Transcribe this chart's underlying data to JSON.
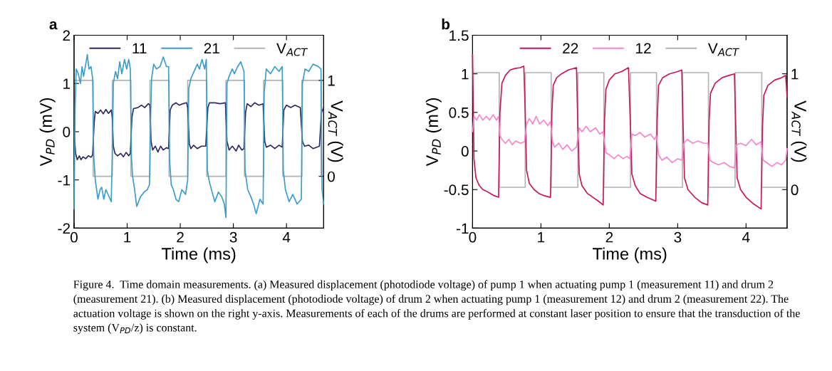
{
  "chart_data": [
    {
      "type": "line",
      "title": "a",
      "xlabel": "Time (ms)",
      "ylabel": "V$_{PD}$ (mV)",
      "y2label": "V$_{ACT}$ (V)",
      "xlim": [
        0,
        4.7
      ],
      "xticks": [
        0,
        1,
        2,
        3,
        4
      ],
      "ylim": [
        -2,
        2
      ],
      "yticks": [
        -2,
        -1,
        0,
        1,
        2
      ],
      "y2lim": [
        -0.54,
        1.47
      ],
      "y2ticks": [
        0,
        1
      ],
      "legend": "top",
      "grid": false,
      "annotations": [
        "Figure 4.  Time domain measurements. (a) Measured displacement (photodiode voltage) of pump 1 when actuating pump 1 (measurement 11) and drum 2 (measurement 21). (b) Measured displacement (photodiode voltage) of drum 2 when actuating pump 1 (measurement 12) and drum 2 (measurement 22). The actuation voltage is shown on the right y-axis. Measurements of each of the drums are performed at constant laser position to ensure that the transduction of the system (V$_{PD}$/z) is constant."
      ],
      "series": [
        {
          "name": "11",
          "color": "#2d2a5f",
          "x": [
            0,
            0.03,
            0.06,
            0.1,
            0.13,
            0.17,
            0.22,
            0.27,
            0.32,
            0.35,
            0.38,
            0.4,
            0.45,
            0.5,
            0.55,
            0.6,
            0.65,
            0.7,
            0.72,
            0.74,
            0.77,
            0.82,
            0.88,
            0.93,
            0.98,
            1.03,
            1.06,
            1.09,
            1.12,
            1.2,
            1.27,
            1.33,
            1.4,
            1.43,
            1.45,
            1.48,
            1.53,
            1.58,
            1.63,
            1.68,
            1.74,
            1.78,
            1.81,
            1.85,
            1.92,
            1.98,
            2.05,
            2.12,
            2.14,
            2.17,
            2.2,
            2.25,
            2.32,
            2.4,
            2.48,
            2.52,
            2.55,
            2.65,
            2.75,
            2.85,
            2.88,
            2.92,
            2.98,
            3.05,
            3.1,
            3.16,
            3.2,
            3.23,
            3.26,
            3.33,
            3.4,
            3.48,
            3.56,
            3.59,
            3.62,
            3.7,
            3.78,
            3.86,
            3.92,
            3.95,
            4.0,
            4.08,
            4.16,
            4.26,
            4.3,
            4.34,
            4.42,
            4.5,
            4.62,
            4.66,
            4.7
          ],
          "values": [
            0,
            -0.45,
            -0.58,
            -0.5,
            -0.58,
            -0.52,
            -0.56,
            -0.5,
            -0.53,
            -0.48,
            0.2,
            0.42,
            0.38,
            0.45,
            0.37,
            0.46,
            0.38,
            0.45,
            0.3,
            -0.3,
            -0.45,
            -0.5,
            -0.45,
            -0.52,
            -0.43,
            -0.5,
            -0.45,
            0.3,
            0.48,
            0.5,
            0.55,
            0.5,
            0.58,
            0.55,
            -0.2,
            -0.38,
            -0.3,
            -0.42,
            -0.3,
            -0.38,
            -0.33,
            -0.35,
            0.45,
            0.55,
            0.6,
            0.55,
            0.58,
            0.6,
            0.5,
            -0.25,
            -0.35,
            -0.28,
            -0.35,
            -0.3,
            -0.3,
            0.5,
            0.6,
            0.6,
            0.58,
            0.6,
            -0.2,
            -0.38,
            -0.3,
            -0.4,
            -0.28,
            -0.38,
            -0.35,
            0.4,
            0.58,
            0.52,
            0.6,
            0.55,
            0.58,
            -0.2,
            -0.32,
            -0.28,
            -0.35,
            -0.28,
            -0.32,
            0.45,
            0.55,
            0.5,
            0.55,
            0.5,
            -0.2,
            -0.3,
            -0.28,
            -0.35,
            -0.3,
            0.4,
            0.5
          ]
        },
        {
          "name": "21",
          "color": "#3b9dca",
          "x": [
            0,
            0.02,
            0.04,
            0.08,
            0.12,
            0.15,
            0.18,
            0.22,
            0.25,
            0.28,
            0.32,
            0.35,
            0.37,
            0.4,
            0.45,
            0.49,
            0.52,
            0.56,
            0.6,
            0.64,
            0.7,
            0.72,
            0.74,
            0.78,
            0.82,
            0.86,
            0.9,
            0.95,
            0.99,
            1.03,
            1.06,
            1.08,
            1.1,
            1.14,
            1.18,
            1.25,
            1.32,
            1.38,
            1.42,
            1.44,
            1.46,
            1.5,
            1.55,
            1.62,
            1.68,
            1.74,
            1.78,
            1.8,
            1.83,
            1.87,
            1.92,
            1.97,
            2.03,
            2.1,
            2.14,
            2.16,
            2.2,
            2.26,
            2.32,
            2.36,
            2.41,
            2.46,
            2.49,
            2.51,
            2.55,
            2.6,
            2.65,
            2.72,
            2.78,
            2.83,
            2.86,
            2.88,
            2.92,
            2.98,
            3.02,
            3.08,
            3.14,
            3.2,
            3.22,
            3.27,
            3.33,
            3.38,
            3.43,
            3.5,
            3.56,
            3.58,
            3.62,
            3.7,
            3.78,
            3.86,
            3.92,
            3.94,
            3.98,
            4.05,
            4.12,
            4.2,
            4.28,
            4.3,
            4.35,
            4.42,
            4.5,
            4.6,
            4.65,
            4.67,
            4.7
          ],
          "values": [
            -1.6,
            0.5,
            1.3,
            1.2,
            1.0,
            1.35,
            1.15,
            1.4,
            1.6,
            1.3,
            1.35,
            1.1,
            -0.5,
            -1.0,
            -1.4,
            -1.2,
            -1.15,
            -1.4,
            -1.2,
            -1.3,
            -1.45,
            -0.5,
            1.0,
            1.25,
            1.1,
            1.45,
            1.2,
            1.5,
            1.3,
            1.5,
            1.3,
            -0.5,
            -0.9,
            -1.2,
            -1.55,
            -1.35,
            -1.25,
            -1.2,
            -1.1,
            0.2,
            1.1,
            1.4,
            1.3,
            1.35,
            1.55,
            1.35,
            1.35,
            -0.6,
            -1.1,
            -1.2,
            -1.4,
            -1.45,
            -1.2,
            -1.3,
            -1.0,
            0.9,
            1.1,
            1.25,
            1.4,
            1.3,
            1.5,
            1.3,
            1.5,
            -0.8,
            -1.05,
            -1.25,
            -1.45,
            -1.25,
            -1.35,
            -1.5,
            -1.78,
            1.0,
            1.15,
            1.3,
            1.2,
            1.35,
            1.45,
            1.25,
            -0.8,
            -1.2,
            -1.35,
            -1.5,
            -1.7,
            -1.4,
            -1.5,
            0.8,
            1.3,
            1.2,
            1.35,
            1.25,
            1.35,
            -0.8,
            -1.2,
            -1.45,
            -1.3,
            -1.5,
            -1.4,
            1.0,
            1.3,
            1.25,
            1.4,
            1.35,
            1.3,
            -1.2,
            -1.5
          ]
        },
        {
          "name": "V$_{ACT}$",
          "color": "#b3b3b3",
          "type": "step",
          "axis": "y2",
          "x": [
            0,
            0.36,
            0.72,
            1.07,
            1.43,
            1.79,
            2.14,
            2.5,
            2.86,
            3.21,
            3.57,
            3.93,
            4.29,
            4.65,
            4.7
          ],
          "values": [
            1,
            0,
            1,
            0,
            1,
            0,
            1,
            0,
            1,
            0,
            1,
            0,
            1,
            0,
            0
          ]
        }
      ]
    },
    {
      "type": "line",
      "title": "b",
      "xlabel": "Time (ms)",
      "ylabel": "V$_{PD}$ (mV)",
      "y2label": "V$_{ACT}$ (V)",
      "xlim": [
        0,
        4.6
      ],
      "xticks": [
        0,
        1,
        2,
        3,
        4
      ],
      "ylim": [
        -1,
        1.5
      ],
      "yticks": [
        -1,
        -0.5,
        0,
        0.5,
        1,
        1.5
      ],
      "y2lim": [
        -0.333,
        1.333
      ],
      "y2ticks": [
        0,
        1
      ],
      "legend": "top",
      "grid": false,
      "series": [
        {
          "name": "22",
          "color": "#c8155c",
          "x": [
            0,
            0.02,
            0.05,
            0.1,
            0.15,
            0.2,
            0.26,
            0.32,
            0.38,
            0.4,
            0.43,
            0.48,
            0.55,
            0.62,
            0.7,
            0.75,
            0.77,
            0.79,
            0.83,
            0.9,
            0.97,
            1.05,
            1.14,
            1.16,
            1.18,
            1.23,
            1.3,
            1.4,
            1.52,
            1.54,
            1.56,
            1.6,
            1.68,
            1.76,
            1.84,
            1.91,
            1.93,
            1.95,
            2.0,
            2.08,
            2.18,
            2.28,
            2.31,
            2.33,
            2.38,
            2.45,
            2.55,
            2.68,
            2.7,
            2.72,
            2.78,
            2.88,
            3.0,
            3.06,
            3.08,
            3.1,
            3.15,
            3.25,
            3.35,
            3.44,
            3.46,
            3.48,
            3.55,
            3.65,
            3.75,
            3.83,
            3.85,
            3.87,
            3.92,
            4.0,
            4.1,
            4.22,
            4.24,
            4.26,
            4.32,
            4.42,
            4.52,
            4.58,
            4.6
          ],
          "values": [
            1.25,
            -0.1,
            -0.35,
            -0.45,
            -0.5,
            -0.52,
            -0.55,
            -0.58,
            -0.6,
            0.5,
            0.88,
            0.98,
            1.05,
            1.07,
            1.08,
            1.1,
            0.5,
            -0.25,
            -0.42,
            -0.5,
            -0.55,
            -0.58,
            -0.6,
            0.5,
            0.85,
            0.95,
            1.0,
            1.05,
            1.08,
            0.3,
            -0.3,
            -0.45,
            -0.55,
            -0.6,
            -0.65,
            -0.7,
            0.4,
            0.8,
            0.92,
            1.0,
            1.03,
            1.08,
            0.3,
            -0.3,
            -0.45,
            -0.55,
            -0.6,
            -0.65,
            0.4,
            0.85,
            0.95,
            1.0,
            1.03,
            1.05,
            0.3,
            -0.35,
            -0.5,
            -0.6,
            -0.67,
            -0.7,
            0.4,
            0.75,
            0.88,
            0.95,
            0.98,
            1.0,
            0.3,
            -0.35,
            -0.5,
            -0.6,
            -0.68,
            -0.75,
            0.3,
            0.72,
            0.85,
            0.92,
            0.95,
            0.98,
            0.7
          ]
        },
        {
          "name": "12",
          "color": "#f785cd",
          "x": [
            0,
            0.02,
            0.06,
            0.1,
            0.15,
            0.2,
            0.25,
            0.3,
            0.35,
            0.38,
            0.4,
            0.43,
            0.48,
            0.53,
            0.58,
            0.63,
            0.7,
            0.76,
            0.79,
            0.83,
            0.88,
            0.93,
            0.98,
            1.04,
            1.1,
            1.14,
            1.17,
            1.2,
            1.26,
            1.32,
            1.38,
            1.45,
            1.52,
            1.56,
            1.6,
            1.66,
            1.72,
            1.8,
            1.86,
            1.91,
            1.95,
            2.0,
            2.07,
            2.13,
            2.2,
            2.26,
            2.3,
            2.33,
            2.38,
            2.45,
            2.52,
            2.6,
            2.66,
            2.69,
            2.72,
            2.77,
            2.84,
            2.92,
            3.0,
            3.06,
            3.09,
            3.14,
            3.22,
            3.3,
            3.38,
            3.44,
            3.47,
            3.52,
            3.6,
            3.68,
            3.76,
            3.83,
            3.86,
            3.92,
            4.0,
            4.08,
            4.15,
            4.22,
            4.25,
            4.3,
            4.38,
            4.45,
            4.52,
            4.58,
            4.6
          ],
          "values": [
            0.25,
            0.45,
            0.4,
            0.47,
            0.4,
            0.45,
            0.4,
            0.47,
            0.4,
            0.45,
            0.2,
            0.15,
            0.1,
            0.15,
            0.08,
            0.13,
            0.1,
            0.12,
            0.35,
            0.42,
            0.35,
            0.45,
            0.35,
            0.4,
            0.33,
            0.38,
            0.12,
            0.05,
            0.1,
            0.02,
            0.08,
            0.0,
            0.05,
            0.3,
            0.25,
            0.32,
            0.25,
            0.3,
            0.22,
            0.25,
            -0.02,
            -0.05,
            -0.1,
            -0.05,
            -0.1,
            -0.07,
            -0.1,
            0.22,
            0.2,
            0.24,
            0.18,
            0.22,
            0.15,
            0.2,
            -0.05,
            -0.12,
            -0.08,
            -0.15,
            -0.1,
            -0.12,
            0.1,
            0.15,
            0.1,
            0.13,
            0.1,
            0.1,
            -0.12,
            -0.15,
            -0.18,
            -0.15,
            -0.2,
            -0.22,
            0.08,
            0.1,
            0.07,
            0.15,
            0.08,
            0.12,
            -0.12,
            -0.15,
            -0.2,
            -0.15,
            -0.18,
            -0.12,
            0.03
          ]
        },
        {
          "name": "V$_{ACT}$",
          "color": "#b3b3b3",
          "type": "step",
          "axis": "y2",
          "x": [
            0,
            0.39,
            0.77,
            1.15,
            1.54,
            1.92,
            2.31,
            2.69,
            3.07,
            3.45,
            3.84,
            4.23,
            4.6
          ],
          "values": [
            1.01,
            0.02,
            1.01,
            0.02,
            1.01,
            0.02,
            1.01,
            0.02,
            1.01,
            0.02,
            1.01,
            0.02,
            0.02
          ]
        }
      ]
    }
  ]
}
